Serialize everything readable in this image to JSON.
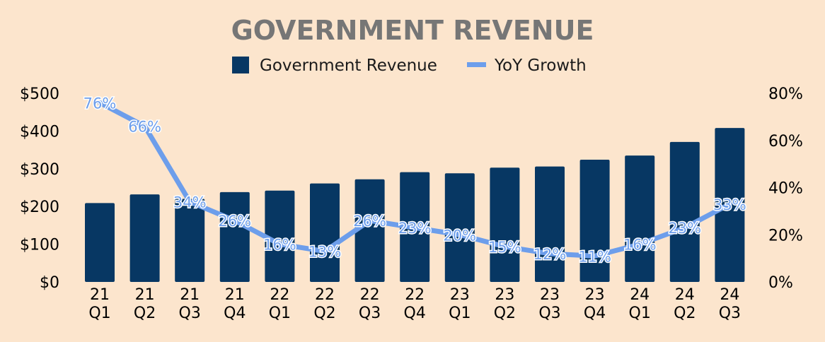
{
  "chart_data": {
    "type": "bar",
    "title": "GOVERNMENT REVENUE",
    "categories": [
      [
        "21",
        "Q1"
      ],
      [
        "21",
        "Q2"
      ],
      [
        "21",
        "Q3"
      ],
      [
        "21",
        "Q4"
      ],
      [
        "22",
        "Q1"
      ],
      [
        "22",
        "Q2"
      ],
      [
        "22",
        "Q3"
      ],
      [
        "22",
        "Q4"
      ],
      [
        "23",
        "Q1"
      ],
      [
        "23",
        "Q2"
      ],
      [
        "23",
        "Q3"
      ],
      [
        "23",
        "Q4"
      ],
      [
        "24",
        "Q1"
      ],
      [
        "24",
        "Q2"
      ],
      [
        "24",
        "Q3"
      ]
    ],
    "series": [
      {
        "name": "Government Revenue",
        "kind": "bar",
        "axis": "left",
        "color": "#073763",
        "values": [
          209,
          232,
          220,
          238,
          242,
          261,
          272,
          291,
          288,
          303,
          306,
          324,
          335,
          371,
          408
        ]
      },
      {
        "name": "YoY Growth",
        "kind": "line",
        "axis": "right",
        "color": "#6d9eeb",
        "values": [
          76,
          66,
          34,
          26,
          16,
          13,
          26,
          23,
          20,
          15,
          12,
          11,
          16,
          23,
          33
        ],
        "labels": [
          "76%",
          "66%",
          "34%",
          "26%",
          "16%",
          "13%",
          "26%",
          "23%",
          "20%",
          "15%",
          "12%",
          "11%",
          "16%",
          "23%",
          "33%"
        ]
      }
    ],
    "y_left": {
      "min": 0,
      "max": 500,
      "ticks": [
        "$0",
        "$100",
        "$200",
        "$300",
        "$400",
        "$500"
      ]
    },
    "y_right": {
      "min": 0,
      "max": 80,
      "ticks": [
        "0%",
        "20%",
        "40%",
        "60%",
        "80%"
      ]
    },
    "legend": {
      "position": "top-center"
    },
    "grid": false
  }
}
